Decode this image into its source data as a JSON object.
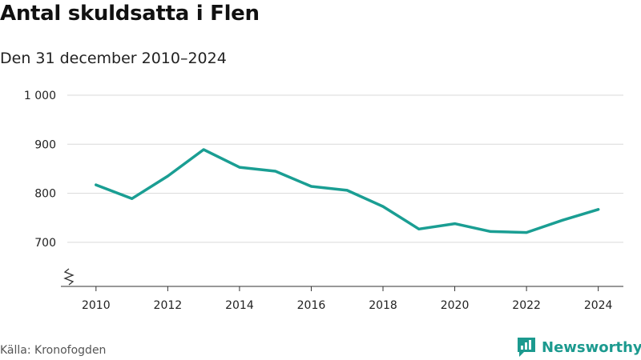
{
  "header": {
    "title": "Antal skuldsatta i Flen",
    "subtitle": "Den 31 december 2010–2024"
  },
  "footer": {
    "source": "Källa: Kronofogden",
    "brand": "Newsworthy"
  },
  "colors": {
    "line": "#1a9e93",
    "brand": "#1c9a8f",
    "grid": "#d9d9d9",
    "axis": "#333333"
  },
  "icons": {
    "logo": "bar-chart-speech-bubble-icon",
    "axis_break": "zigzag-break-icon"
  },
  "chart_data": {
    "type": "line",
    "title": "Antal skuldsatta i Flen",
    "subtitle": "Den 31 december 2010–2024",
    "xlabel": "",
    "ylabel": "",
    "x": [
      2010,
      2011,
      2012,
      2013,
      2014,
      2015,
      2016,
      2017,
      2018,
      2019,
      2020,
      2021,
      2022,
      2023,
      2024
    ],
    "series": [
      {
        "values": [
          817,
          789,
          835,
          889,
          853,
          845,
          814,
          806,
          773,
          727,
          738,
          722,
          720,
          745,
          767
        ]
      }
    ],
    "xlim": [
      2009.2,
      2024.7
    ],
    "ylim": [
      610,
      1000
    ],
    "axis_break": true,
    "yticks": [
      700,
      800,
      900,
      1000
    ],
    "ytick_labels": [
      "700",
      "800",
      "900",
      "1 000"
    ],
    "xticks": [
      2010,
      2012,
      2014,
      2016,
      2018,
      2020,
      2022,
      2024
    ],
    "xtick_labels": [
      "2010",
      "2012",
      "2014",
      "2016",
      "2018",
      "2020",
      "2022",
      "2024"
    ],
    "grid": true,
    "legend": "none"
  }
}
